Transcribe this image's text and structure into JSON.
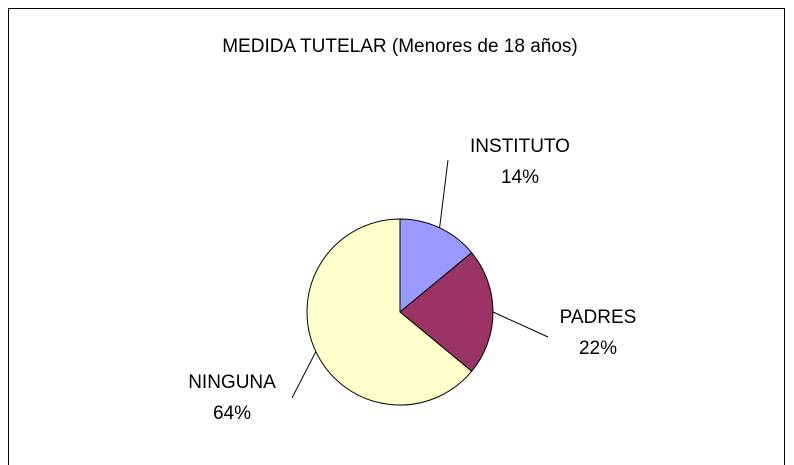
{
  "chart_data": {
    "type": "pie",
    "title": "MEDIDA TUTELAR (Menores de 18 años)",
    "categories": [
      "INSTITUTO",
      "PADRES",
      "NINGUNA"
    ],
    "values": [
      14,
      22,
      64
    ],
    "value_labels": [
      "14%",
      "22%",
      "64%"
    ],
    "colors": [
      "#9999ff",
      "#993366",
      "#ffffcc"
    ]
  }
}
